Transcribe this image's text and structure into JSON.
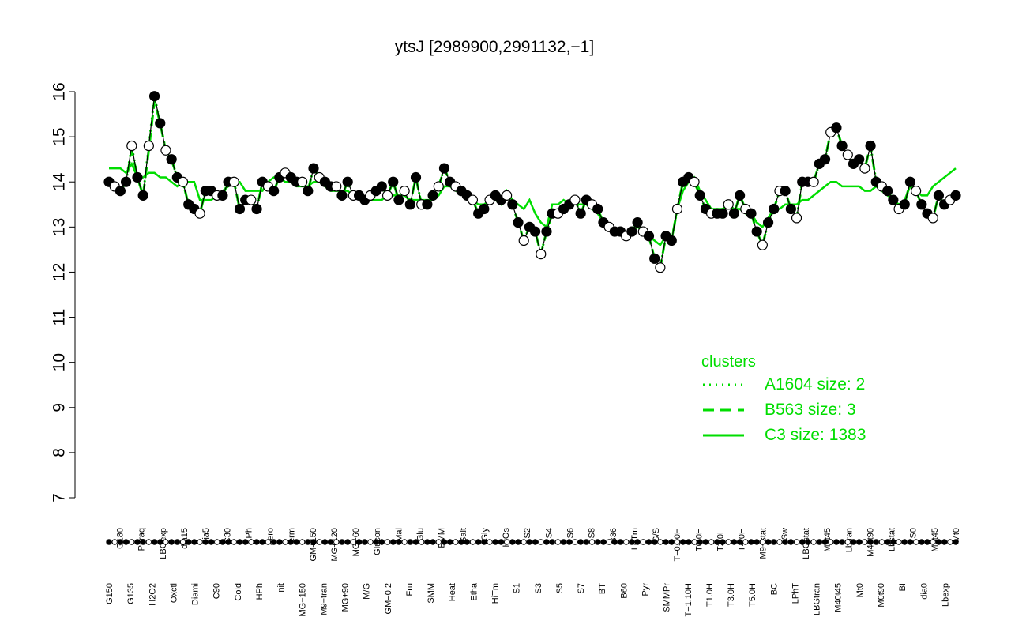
{
  "chart_data": {
    "type": "line",
    "title": "ytsJ [2989900,2991132,−1]",
    "xlabel": "",
    "ylabel": "",
    "ylim": [
      7,
      16
    ],
    "y_ticks": [
      7,
      8,
      9,
      10,
      11,
      12,
      13,
      14,
      15,
      16
    ],
    "grid": false,
    "x_tick_labels": [
      "G150",
      "G180",
      "G135",
      "Paraq",
      "H2O2",
      "LBGexp",
      "Oxctl",
      "dia15",
      "Diami",
      "dia5",
      "C90",
      "C30",
      "Cold",
      "LPh",
      "HPh",
      "aero",
      "nit",
      "ferm",
      "MG+150",
      "GM+150",
      "M9−tran",
      "MG+120",
      "MG+90",
      "MG+60",
      "M/G",
      "Glucon",
      "GM−0.2",
      "Mal",
      "Fru",
      "Glu",
      "SMM",
      "BMM",
      "Heat",
      "Salt",
      "Etha",
      "Gly",
      "HiTm",
      "HiOs",
      "S1",
      "S2",
      "S3",
      "S4",
      "S5",
      "S6",
      "S7",
      "S8",
      "BT",
      "B36",
      "B60",
      "LoTm",
      "Pyr",
      "G/S",
      "SMMPr",
      "T−0.40H",
      "T−1.10H",
      "T0.0H",
      "T1.0H",
      "T2.0H",
      "T3.0H",
      "T4.0H",
      "T5.0H",
      "M9−stat",
      "BC",
      "Sw",
      "LPhT",
      "LBGstat",
      "LBGtran",
      "M0t45",
      "M40t45",
      "Lbtran",
      "Mt0",
      "M40t90",
      "M0t90",
      "Lbstat",
      "BI",
      "S0",
      "dia0",
      "M0t45",
      "Lbexp",
      "Mt0"
    ],
    "points_top": [
      14.0,
      13.9,
      13.8,
      14.0,
      14.8,
      14.1,
      13.7,
      14.8,
      15.9,
      15.3,
      14.7,
      14.5,
      14.1,
      14.0,
      13.5,
      13.4,
      13.3,
      13.8,
      13.8,
      13.7,
      13.7,
      14.0,
      14.0,
      13.4,
      13.6,
      13.6,
      13.4,
      14.0,
      13.9,
      13.8,
      14.1,
      14.2,
      14.1,
      14.0,
      14.0,
      13.8,
      14.3,
      14.1,
      14.0,
      13.9,
      13.9,
      13.7,
      14.0,
      13.7,
      13.7,
      13.6,
      13.7,
      13.8,
      13.9,
      13.7,
      14.0,
      13.6,
      13.8,
      13.5,
      14.1,
      13.5,
      13.5,
      13.7,
      13.9,
      14.3,
      14.0,
      13.9,
      13.8,
      13.7,
      13.6,
      13.3,
      13.4,
      13.6,
      13.7,
      13.6,
      13.7,
      13.5,
      13.1,
      12.7,
      13.0,
      12.9,
      12.4,
      12.9,
      13.3,
      13.3,
      13.4,
      13.5,
      13.6,
      13.3,
      13.6,
      13.5,
      13.4,
      13.1,
      13.0,
      12.9,
      12.9,
      12.8,
      12.9,
      13.1,
      12.9,
      12.8,
      12.3,
      12.1,
      12.8,
      12.7,
      13.4,
      14.0,
      14.1,
      14.0,
      13.7,
      13.4,
      13.3,
      13.3,
      13.3,
      13.5,
      13.3,
      13.7,
      13.4,
      13.3,
      12.9,
      12.6,
      13.1,
      13.4,
      13.8,
      13.8,
      13.4,
      13.2,
      14.0,
      14.0,
      14.0,
      14.4,
      14.5,
      15.1,
      15.2,
      14.8,
      14.6,
      14.4,
      14.5,
      14.3,
      14.8,
      14.0,
      13.9,
      13.8,
      13.6,
      13.4,
      13.5,
      14.0,
      13.8,
      13.5,
      13.3,
      13.2,
      13.7,
      13.5,
      13.6,
      13.7
    ],
    "series": [
      {
        "name": "C3 size: 1383",
        "style": "solid",
        "values": [
          14.3,
          14.3,
          14.3,
          14.2,
          14.4,
          14.1,
          14.1,
          14.2,
          14.2,
          14.1,
          14.1,
          14.0,
          13.9,
          14.0,
          14.0,
          14.0,
          13.6,
          13.6,
          13.6,
          13.7,
          13.8,
          13.9,
          14.0,
          14.0,
          13.8,
          13.8,
          13.8,
          13.8,
          14.0,
          14.1,
          14.1,
          14.0,
          14.0,
          13.9,
          13.9,
          13.9,
          14.0,
          14.0,
          13.9,
          13.8,
          13.8,
          13.8,
          13.8,
          13.7,
          13.7,
          13.6,
          13.6,
          13.6,
          13.6,
          13.7,
          13.7,
          13.7,
          13.7,
          13.6,
          13.6,
          13.6,
          13.6,
          13.6,
          13.7,
          13.9,
          13.9,
          13.8,
          13.8,
          13.7,
          13.6,
          13.5,
          13.5,
          13.6,
          13.6,
          13.5,
          13.8,
          13.6,
          13.5,
          13.4,
          13.6,
          13.3,
          13.1,
          13.0,
          13.5,
          13.5,
          13.6,
          13.5,
          13.5,
          13.5,
          13.5,
          13.4,
          13.3,
          13.1,
          13.0,
          12.9,
          12.9,
          12.8,
          12.9,
          13.0,
          12.9,
          12.8,
          12.7,
          12.6,
          12.8,
          12.7,
          13.4,
          13.8,
          14.0,
          14.1,
          13.8,
          13.6,
          13.4,
          13.4,
          13.4,
          13.5,
          13.4,
          13.4,
          13.3,
          13.3,
          13.1,
          13.0,
          13.2,
          13.4,
          13.4,
          13.5,
          13.5,
          13.5,
          13.6,
          13.6,
          13.7,
          13.8,
          13.9,
          14.0,
          14.0,
          13.9,
          13.9,
          13.9,
          13.9,
          13.8,
          13.8,
          13.9,
          13.8,
          13.7,
          13.6,
          13.5,
          13.6,
          13.9,
          13.8,
          13.7,
          13.7,
          13.9,
          14.0,
          14.1,
          14.2,
          14.3
        ]
      },
      {
        "name": "B563 size: 3",
        "style": "dashed",
        "values": [
          14.0,
          13.9,
          13.8,
          14.0,
          14.7,
          14.1,
          13.7,
          14.7,
          15.8,
          15.3,
          14.7,
          14.5,
          14.1,
          14.0,
          13.5,
          13.4,
          13.3,
          13.8,
          13.8,
          13.7,
          13.7,
          14.0,
          14.0,
          13.4,
          13.6,
          13.6,
          13.4,
          14.0,
          13.9,
          13.8,
          14.1,
          14.2,
          14.1,
          14.0,
          14.0,
          13.8,
          14.3,
          14.1,
          14.0,
          13.9,
          13.9,
          13.7,
          14.0,
          13.7,
          13.7,
          13.6,
          13.7,
          13.8,
          13.9,
          13.7,
          14.0,
          13.6,
          13.8,
          13.5,
          14.1,
          13.5,
          13.5,
          13.7,
          13.9,
          14.3,
          14.0,
          13.9,
          13.8,
          13.7,
          13.6,
          13.3,
          13.4,
          13.6,
          13.7,
          13.6,
          13.7,
          13.5,
          13.1,
          12.7,
          13.0,
          12.9,
          12.4,
          12.9,
          13.3,
          13.3,
          13.4,
          13.5,
          13.6,
          13.3,
          13.6,
          13.5,
          13.4,
          13.1,
          13.0,
          12.9,
          12.9,
          12.8,
          12.9,
          13.1,
          12.9,
          12.8,
          12.3,
          12.1,
          12.8,
          12.7,
          13.4,
          14.0,
          14.1,
          14.0,
          13.7,
          13.4,
          13.3,
          13.3,
          13.3,
          13.5,
          13.3,
          13.7,
          13.4,
          13.3,
          12.9,
          12.6,
          13.1,
          13.4,
          13.8,
          13.8,
          13.4,
          13.2,
          14.0,
          14.0,
          14.0,
          14.4,
          14.5,
          15.1,
          15.2,
          14.8,
          14.6,
          14.4,
          14.5,
          14.3,
          14.8,
          14.0,
          13.9,
          13.8,
          13.6,
          13.4,
          13.5,
          14.0,
          13.8,
          13.5,
          13.3,
          13.2,
          13.7,
          13.5,
          13.6,
          13.7
        ]
      },
      {
        "name": "A1604 size: 2",
        "style": "dotted",
        "values": [
          14.0,
          13.9,
          13.8,
          14.0,
          14.8,
          14.1,
          13.7,
          14.8,
          15.9,
          15.3,
          14.7,
          14.5,
          14.1,
          14.0,
          13.5,
          13.4,
          13.3,
          13.8,
          13.8,
          13.7,
          13.7,
          14.0,
          14.0,
          13.4,
          13.6,
          13.6,
          13.4,
          14.0,
          13.9,
          13.8,
          14.1,
          14.2,
          14.1,
          14.0,
          14.0,
          13.8,
          14.3,
          14.1,
          14.0,
          13.9,
          13.9,
          13.7,
          14.0,
          13.7,
          13.7,
          13.6,
          13.7,
          13.8,
          13.9,
          13.7,
          14.0,
          13.6,
          13.8,
          13.5,
          14.1,
          13.5,
          13.5,
          13.7,
          13.9,
          14.3,
          14.0,
          13.9,
          13.8,
          13.7,
          13.6,
          13.3,
          13.4,
          13.6,
          13.7,
          13.6,
          13.7,
          13.5,
          13.1,
          12.7,
          13.0,
          12.9,
          12.4,
          12.9,
          13.3,
          13.3,
          13.4,
          13.5,
          13.6,
          13.3,
          13.6,
          13.5,
          13.4,
          13.1,
          13.0,
          12.9,
          12.9,
          12.8,
          12.9,
          13.1,
          12.9,
          12.8,
          12.3,
          12.1,
          12.8,
          12.7,
          13.4,
          14.0,
          14.1,
          14.0,
          13.7,
          13.4,
          13.3,
          13.3,
          13.3,
          13.5,
          13.3,
          13.7,
          13.4,
          13.3,
          12.9,
          12.6,
          13.1,
          13.4,
          13.8,
          13.8,
          13.4,
          13.2,
          14.0,
          14.0,
          14.0,
          14.4,
          14.5,
          15.1,
          15.2,
          14.8,
          14.6,
          14.4,
          14.5,
          14.3,
          14.8,
          14.0,
          13.9,
          13.8,
          13.6,
          13.4,
          13.5,
          14.0,
          13.8,
          13.5,
          13.3,
          13.2,
          13.7,
          13.5,
          13.6,
          13.7
        ]
      }
    ],
    "legend": {
      "title": "clusters",
      "placement": "bottom-right",
      "entries": [
        {
          "label": "A1604 size: 2",
          "style": "dotted"
        },
        {
          "label": "B563 size: 3",
          "style": "dashed"
        },
        {
          "label": "C3 size: 1383",
          "style": "solid"
        }
      ]
    },
    "colors": {
      "series": "#00dd00",
      "points_line": "#000000",
      "axes": "#000000",
      "legend": "#00dd00"
    }
  }
}
